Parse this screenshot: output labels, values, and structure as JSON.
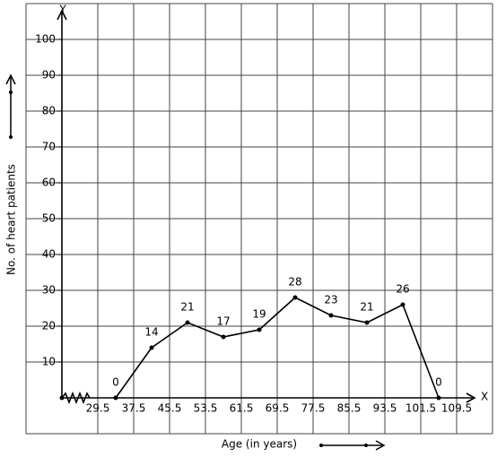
{
  "chart_data": {
    "type": "line",
    "x_label": "Age (in years)",
    "y_label": "No. of heart patients",
    "x_axis_name": "X",
    "y_axis_name": "Y",
    "x": [
      33.5,
      41.5,
      49.5,
      57.5,
      65.5,
      73.5,
      81.5,
      89.5,
      97.5,
      105.5
    ],
    "series": [
      {
        "color": "#000000",
        "values": [
          0,
          14,
          21,
          17,
          19,
          28,
          23,
          21,
          26,
          0
        ]
      }
    ],
    "xlim": [
      21.5,
      117.5
    ],
    "ylim": [
      0,
      110
    ],
    "xticks": [
      29.5,
      37.5,
      45.5,
      53.5,
      61.5,
      69.5,
      77.5,
      85.5,
      93.5,
      101.5,
      109.5
    ],
    "yticks": [
      10,
      20,
      30,
      40,
      50,
      60,
      70,
      80,
      90,
      100
    ],
    "grid": true
  }
}
